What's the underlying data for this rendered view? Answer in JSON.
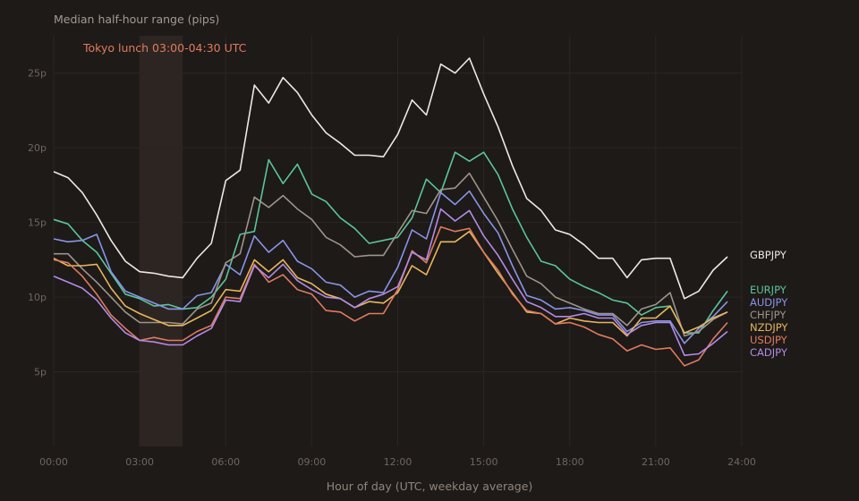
{
  "chart_data": {
    "type": "line",
    "title": "Median half-hour range (pips)",
    "xlabel": "Hour of day (UTC, weekday average)",
    "ylabel": "",
    "xlim": [
      0,
      24
    ],
    "ylim": [
      0,
      27.5
    ],
    "x_ticks": [
      0,
      3,
      6,
      9,
      12,
      15,
      18,
      21,
      24
    ],
    "x_tick_labels": [
      "00:00",
      "03:00",
      "06:00",
      "09:00",
      "12:00",
      "15:00",
      "18:00",
      "21:00",
      "24:00"
    ],
    "y_ticks": [
      5,
      10,
      15,
      20,
      25
    ],
    "y_tick_labels": [
      "5p",
      "10p",
      "15p",
      "20p",
      "25p"
    ],
    "grid": true,
    "legend": "right",
    "annotation": {
      "label": "Tokyo lunch 03:00-04:30 UTC",
      "x_start": 3.0,
      "x_end": 4.5,
      "color": "#e07a5f"
    },
    "x": [
      0,
      0.5,
      1,
      1.5,
      2,
      2.5,
      3,
      3.5,
      4,
      4.5,
      5,
      5.5,
      6,
      6.5,
      7,
      7.5,
      8,
      8.5,
      9,
      9.5,
      10,
      10.5,
      11,
      11.5,
      12,
      12.5,
      13,
      13.5,
      14,
      14.5,
      15,
      15.5,
      16,
      16.5,
      17,
      17.5,
      18,
      18.5,
      19,
      19.5,
      20,
      20.5,
      21,
      21.5,
      22,
      22.5,
      23,
      23.5
    ],
    "series": [
      {
        "name": "GBPJPY",
        "color": "#ede8e2",
        "values": [
          18.4,
          18.0,
          17.0,
          15.5,
          13.8,
          12.4,
          11.7,
          11.6,
          11.4,
          11.3,
          12.6,
          13.6,
          17.8,
          18.5,
          24.2,
          23.0,
          24.7,
          23.7,
          22.2,
          21.0,
          20.3,
          19.5,
          19.5,
          19.4,
          20.9,
          23.2,
          22.2,
          25.6,
          25.0,
          26.0,
          23.6,
          21.4,
          18.8,
          16.6,
          15.8,
          14.5,
          14.2,
          13.5,
          12.6,
          12.6,
          11.3,
          12.5,
          12.6,
          12.6,
          9.9,
          10.4,
          11.8,
          12.7
        ]
      },
      {
        "name": "EURJPY",
        "color": "#5cc49a",
        "values": [
          15.2,
          14.9,
          13.8,
          13.0,
          11.6,
          10.2,
          9.9,
          9.4,
          9.5,
          9.2,
          9.3,
          10.0,
          11.2,
          14.2,
          14.4,
          19.2,
          17.6,
          18.9,
          16.9,
          16.4,
          15.3,
          14.6,
          13.6,
          13.8,
          14.0,
          15.3,
          17.9,
          17.0,
          19.7,
          19.1,
          19.7,
          18.2,
          15.9,
          14.0,
          12.4,
          12.1,
          11.2,
          10.7,
          10.3,
          9.8,
          9.6,
          8.8,
          9.3,
          9.4,
          7.6,
          7.6,
          9.1,
          10.4
        ]
      },
      {
        "name": "AUDJPY",
        "color": "#8a94e6",
        "values": [
          13.9,
          13.7,
          13.8,
          14.2,
          11.7,
          10.4,
          10.0,
          9.6,
          9.2,
          9.2,
          10.1,
          10.3,
          12.2,
          11.5,
          14.1,
          13.0,
          13.8,
          12.4,
          11.9,
          11.0,
          10.8,
          10.0,
          10.4,
          10.3,
          12.0,
          14.5,
          13.9,
          17.0,
          16.2,
          17.1,
          15.6,
          14.3,
          12.1,
          10.1,
          9.8,
          9.2,
          9.3,
          9.1,
          8.8,
          8.8,
          7.7,
          8.3,
          8.4,
          8.4,
          6.9,
          7.9,
          8.7,
          9.7
        ]
      },
      {
        "name": "CHFJPY",
        "color": "#9e948a",
        "values": [
          12.9,
          12.9,
          11.9,
          11.0,
          10.0,
          9.0,
          8.3,
          8.3,
          8.3,
          8.2,
          9.2,
          9.6,
          12.3,
          12.9,
          16.7,
          16.0,
          16.8,
          15.9,
          15.2,
          14.0,
          13.5,
          12.7,
          12.8,
          12.8,
          14.3,
          15.8,
          15.6,
          17.2,
          17.3,
          18.3,
          16.7,
          15.1,
          13.2,
          11.4,
          10.9,
          10.0,
          9.6,
          9.2,
          8.9,
          8.9,
          8.1,
          9.2,
          9.5,
          10.3,
          7.4,
          7.7,
          8.5,
          9.0
        ]
      },
      {
        "name": "NZDJPY",
        "color": "#e8b65c",
        "values": [
          12.6,
          12.1,
          12.1,
          12.2,
          10.6,
          9.4,
          8.9,
          8.5,
          8.1,
          8.1,
          8.6,
          9.1,
          10.5,
          10.4,
          12.5,
          11.7,
          12.5,
          11.3,
          10.9,
          10.2,
          9.9,
          9.3,
          9.7,
          9.6,
          10.3,
          12.1,
          11.5,
          13.7,
          13.7,
          14.4,
          13.0,
          11.6,
          10.3,
          9.0,
          8.9,
          8.2,
          8.6,
          8.4,
          8.3,
          8.3,
          7.4,
          8.6,
          8.6,
          9.4,
          7.6,
          8.0,
          8.6,
          9.0
        ]
      },
      {
        "name": "USDJPY",
        "color": "#e07a5f",
        "values": [
          12.5,
          12.3,
          11.4,
          10.2,
          8.8,
          7.9,
          7.1,
          7.3,
          7.1,
          7.1,
          7.7,
          8.1,
          10.0,
          9.9,
          12.2,
          11.0,
          11.5,
          10.5,
          10.2,
          9.1,
          9.0,
          8.4,
          8.9,
          8.9,
          10.5,
          13.1,
          12.3,
          14.7,
          14.4,
          14.6,
          13.0,
          11.8,
          10.2,
          9.1,
          8.9,
          8.2,
          8.3,
          8.0,
          7.5,
          7.2,
          6.4,
          6.8,
          6.5,
          6.6,
          5.4,
          5.8,
          7.2,
          8.3
        ]
      },
      {
        "name": "CADJPY",
        "color": "#b48ae6",
        "values": [
          11.4,
          11.0,
          10.6,
          9.8,
          8.6,
          7.6,
          7.1,
          7.0,
          6.8,
          6.8,
          7.4,
          7.9,
          9.8,
          9.7,
          12.1,
          11.3,
          12.2,
          11.1,
          10.5,
          10.0,
          9.9,
          9.3,
          9.9,
          10.2,
          10.7,
          13.0,
          12.5,
          15.9,
          15.1,
          15.8,
          14.1,
          12.8,
          11.2,
          9.7,
          9.3,
          8.7,
          8.7,
          8.9,
          8.6,
          8.6,
          7.5,
          8.1,
          8.3,
          8.3,
          6.1,
          6.2,
          6.9,
          7.7
        ]
      }
    ]
  }
}
